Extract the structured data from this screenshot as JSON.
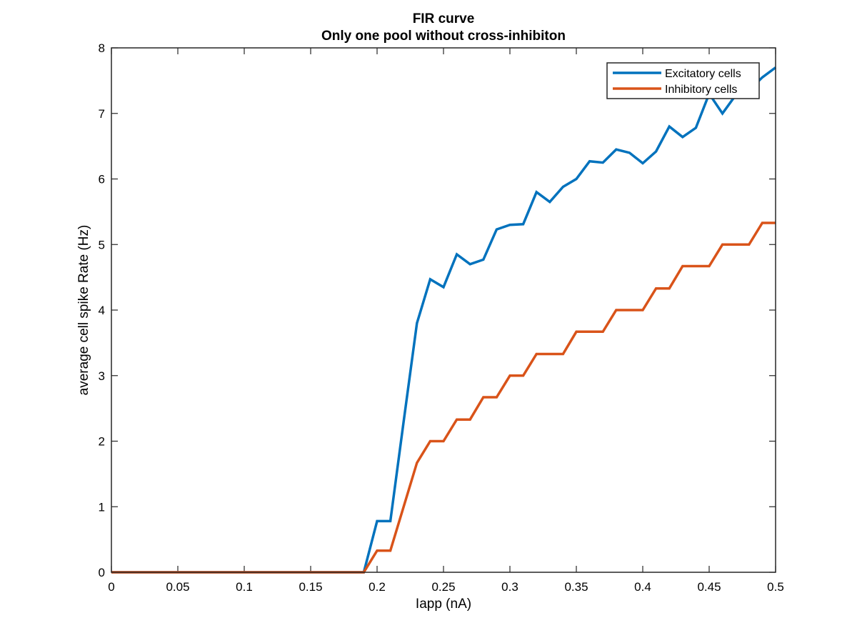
{
  "chart_data": {
    "type": "line",
    "title": "FIR curve",
    "subtitle": "Only one pool without cross-inhibiton",
    "xlabel": "Iapp (nA)",
    "ylabel": "average cell spike Rate (Hz)",
    "xlim": [
      0,
      0.5
    ],
    "ylim": [
      0,
      8
    ],
    "xticks": [
      0,
      0.05,
      0.1,
      0.15,
      0.2,
      0.25,
      0.3,
      0.35,
      0.4,
      0.45,
      0.5
    ],
    "xtick_labels": [
      "0",
      "0.05",
      "0.1",
      "0.15",
      "0.2",
      "0.25",
      "0.3",
      "0.35",
      "0.4",
      "0.45",
      "0.5"
    ],
    "yticks": [
      0,
      1,
      2,
      3,
      4,
      5,
      6,
      7,
      8
    ],
    "ytick_labels": [
      "0",
      "1",
      "2",
      "3",
      "4",
      "5",
      "6",
      "7",
      "8"
    ],
    "grid": false,
    "legend_position": "top-right",
    "x": [
      0,
      0.01,
      0.02,
      0.03,
      0.04,
      0.05,
      0.06,
      0.07,
      0.08,
      0.09,
      0.1,
      0.11,
      0.12,
      0.13,
      0.14,
      0.15,
      0.16,
      0.17,
      0.18,
      0.19,
      0.2,
      0.21,
      0.22,
      0.23,
      0.24,
      0.25,
      0.26,
      0.27,
      0.28,
      0.29,
      0.3,
      0.31,
      0.32,
      0.33,
      0.34,
      0.35,
      0.36,
      0.37,
      0.38,
      0.39,
      0.4,
      0.41,
      0.42,
      0.43,
      0.44,
      0.45,
      0.46,
      0.47,
      0.48,
      0.49,
      0.5
    ],
    "series": [
      {
        "name": "Excitatory cells",
        "color": "#0072BD",
        "values": [
          0,
          0,
          0,
          0,
          0,
          0,
          0,
          0,
          0,
          0,
          0,
          0,
          0,
          0,
          0,
          0,
          0,
          0,
          0,
          0,
          0.78,
          0.78,
          2.3,
          3.8,
          4.47,
          4.35,
          4.85,
          4.7,
          4.77,
          5.23,
          5.3,
          5.31,
          5.8,
          5.65,
          5.88,
          6.0,
          6.27,
          6.25,
          6.45,
          6.4,
          6.24,
          6.42,
          6.8,
          6.64,
          6.78,
          7.3,
          7.0,
          7.28,
          7.35,
          7.55,
          7.7
        ]
      },
      {
        "name": "Inhibitory cells",
        "color": "#D95319",
        "values": [
          0,
          0,
          0,
          0,
          0,
          0,
          0,
          0,
          0,
          0,
          0,
          0,
          0,
          0,
          0,
          0,
          0,
          0,
          0,
          0,
          0.33,
          0.33,
          1.0,
          1.67,
          2.0,
          2.0,
          2.33,
          2.33,
          2.67,
          2.67,
          3.0,
          3.0,
          3.33,
          3.33,
          3.33,
          3.67,
          3.67,
          3.67,
          4.0,
          4.0,
          4.0,
          4.33,
          4.33,
          4.67,
          4.67,
          4.67,
          5.0,
          5.0,
          5.0,
          5.33,
          5.33
        ]
      }
    ]
  }
}
